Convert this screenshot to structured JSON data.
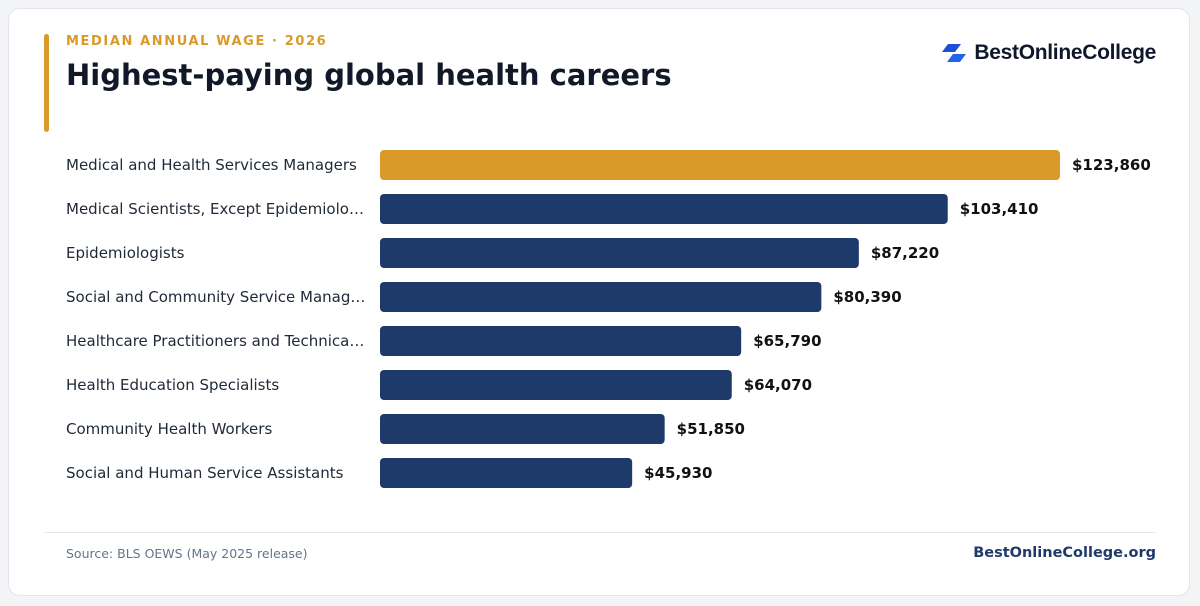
{
  "header": {
    "eyebrow": "MEDIAN ANNUAL WAGE · 2026",
    "title": "Highest-paying global health careers"
  },
  "brand": {
    "name": "BestOnlineCollege",
    "icon": "brand-logo-icon"
  },
  "colors": {
    "highlight": "#d99a29",
    "bar": "#1e3a6b",
    "label": "#1f2937",
    "value": "#111111"
  },
  "chart_data": {
    "type": "bar",
    "orientation": "horizontal",
    "categories": [
      "Medical and Health Services Managers",
      "Medical Scientists, Except Epidemiolo…",
      "Epidemiologists",
      "Social and Community Service Manag…",
      "Healthcare Practitioners and Technica…",
      "Health Education Specialists",
      "Community Health Workers",
      "Social and Human Service Assistants"
    ],
    "values": [
      123860,
      103410,
      87220,
      80390,
      65790,
      64070,
      51850,
      45930
    ],
    "value_labels": [
      "$123,860",
      "$103,410",
      "$87,220",
      "$80,390",
      "$65,790",
      "$64,070",
      "$51,850",
      "$45,930"
    ],
    "highlight_index": 0,
    "xlim": [
      0,
      123860
    ],
    "grid": false,
    "legend": "none"
  },
  "footer": {
    "source": "Source: BLS OEWS (May 2025 release)",
    "site": "BestOnlineCollege.org"
  }
}
